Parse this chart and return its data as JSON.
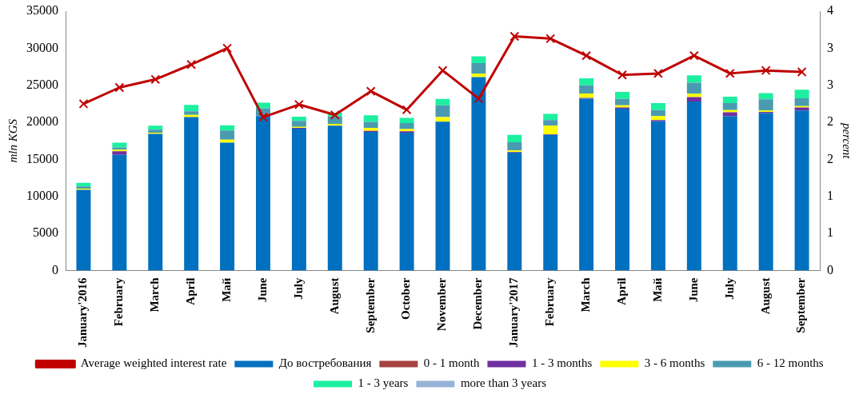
{
  "chart_data": {
    "type": "bar",
    "stacked": true,
    "ylabel": "mln KGS",
    "y2label": "percent",
    "categories": [
      "January'2016",
      "February",
      "March",
      "April",
      "Май",
      "June",
      "July",
      "August",
      "September",
      "October",
      "November",
      "December",
      "January'2017",
      "February",
      "March",
      "April",
      "Май",
      "June",
      "July",
      "August",
      "September"
    ],
    "series": [
      {
        "name": "До востребования",
        "color": "#0070c0",
        "values": [
          10900,
          15600,
          18450,
          20700,
          17250,
          20850,
          19150,
          19550,
          18700,
          18600,
          20100,
          26100,
          15900,
          18300,
          23200,
          21850,
          20150,
          22800,
          20850,
          21250,
          21600
        ]
      },
      {
        "name": "0 - 1 month",
        "color": "#a5433f",
        "values": [
          0,
          0,
          0,
          0,
          0,
          0,
          0,
          0,
          0,
          0,
          0,
          0,
          0,
          0,
          0,
          0,
          0,
          0,
          0,
          0,
          0
        ]
      },
      {
        "name": "1 - 3 months",
        "color": "#7030a0",
        "values": [
          null,
          500,
          null,
          0,
          0,
          0,
          100,
          0,
          150,
          200,
          0,
          0,
          100,
          100,
          100,
          150,
          150,
          600,
          500,
          150,
          400
        ]
      },
      {
        "name": "3 - 6 months",
        "color": "#ffff00",
        "values": [
          150,
          200,
          150,
          300,
          400,
          null,
          150,
          250,
          400,
          300,
          600,
          500,
          200,
          1150,
          600,
          300,
          550,
          450,
          300,
          200,
          200
        ]
      },
      {
        "name": "6 - 12 months",
        "color": "#4a9bb0",
        "values": [
          300,
          300,
          400,
          500,
          1250,
          1050,
          800,
          1000,
          800,
          800,
          1600,
          1400,
          1100,
          750,
          1100,
          850,
          800,
          1500,
          950,
          1500,
          1050
        ]
      },
      {
        "name": "1 - 3 years",
        "color": "#1cf0a0",
        "values": [
          500,
          650,
          550,
          850,
          700,
          750,
          550,
          500,
          900,
          700,
          850,
          900,
          1000,
          850,
          950,
          950,
          950,
          1000,
          850,
          850,
          1150
        ]
      },
      {
        "name": "more than 3 years",
        "color": "#95b3d7",
        "values": [
          0,
          0,
          0,
          0,
          0,
          0,
          0,
          0,
          0,
          0,
          0,
          0,
          0,
          0,
          0,
          0,
          0,
          0,
          0,
          0,
          0
        ]
      },
      {
        "name": "Average weighted interest rate",
        "type": "line",
        "axis": "y2",
        "color": "#c00000",
        "values": [
          2.25,
          2.47,
          2.58,
          2.78,
          3.0,
          2.07,
          2.24,
          2.1,
          2.42,
          2.17,
          2.7,
          2.32,
          3.16,
          3.13,
          2.9,
          2.64,
          2.66,
          2.9,
          2.66,
          2.7,
          2.68
        ]
      }
    ],
    "ylim": [
      0,
      35000
    ],
    "yticks": [
      0,
      5000,
      10000,
      15000,
      20000,
      25000,
      30000,
      35000
    ],
    "y2lim": [
      0,
      3.5
    ],
    "y2ticks": [
      0,
      {
        "value": 0.5,
        "label": "1"
      },
      1,
      {
        "value": 1.5,
        "label": "2"
      },
      2,
      {
        "value": 2.5,
        "label": "3"
      },
      3,
      {
        "value": 3.5,
        "label": "4"
      }
    ],
    "marker": "cross",
    "legend": "bottom",
    "grid": false
  }
}
